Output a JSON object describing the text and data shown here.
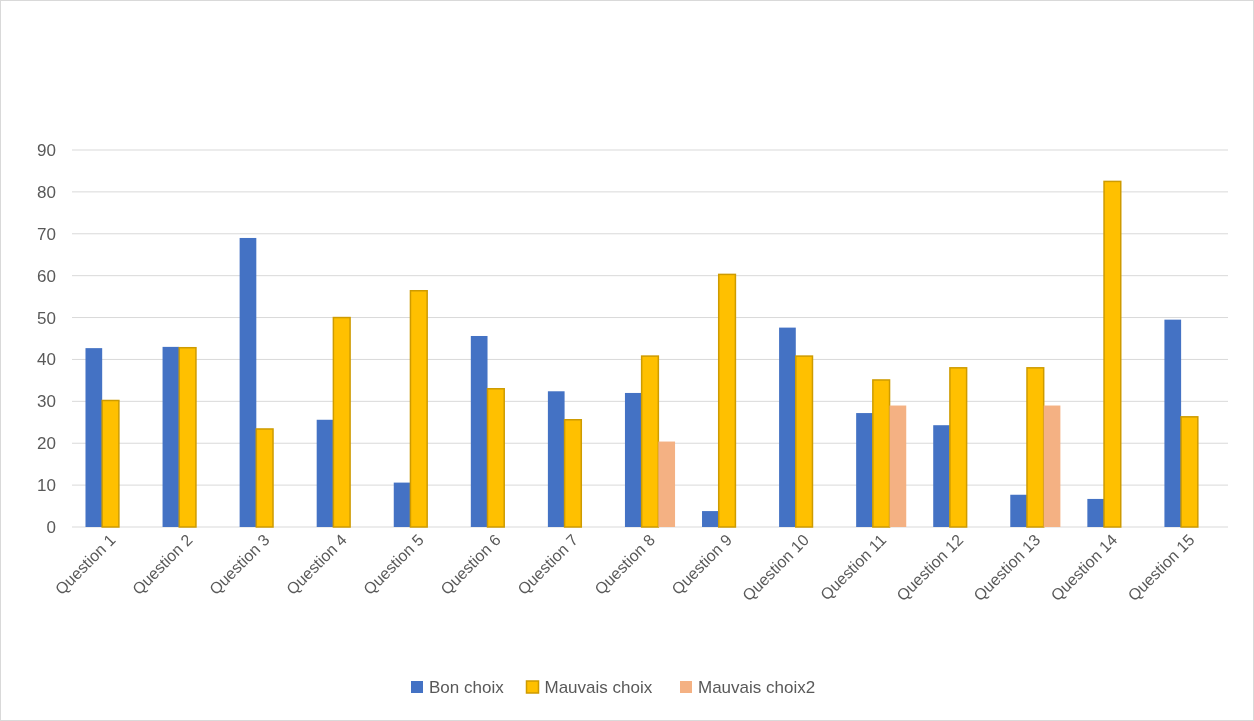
{
  "chart_data": {
    "type": "bar",
    "categories": [
      "Question 1",
      "Question 2",
      "Question 3",
      "Question 4",
      "Question 5",
      "Question 6",
      "Question 7",
      "Question 8",
      "Question 9",
      "Question 10",
      "Question 11",
      "Question 12",
      "Question 13",
      "Question 14",
      "Question 15"
    ],
    "series": [
      {
        "name": "Bon choix",
        "color": "#4472c4",
        "values": [
          42.7,
          43,
          69,
          25.6,
          10.6,
          45.6,
          32.4,
          32,
          3.8,
          47.6,
          27.2,
          24.3,
          7.7,
          6.7,
          49.5
        ]
      },
      {
        "name": "Mauvais choix",
        "color": "#ffc000",
        "values": [
          30.2,
          42.8,
          23.4,
          50,
          56.4,
          33,
          25.6,
          40.8,
          60.3,
          40.8,
          35.1,
          38,
          38,
          82.5,
          26.3
        ]
      },
      {
        "name": "Mauvais choix2",
        "color": "#f4b183",
        "values": [
          null,
          null,
          null,
          null,
          null,
          null,
          null,
          20.4,
          null,
          null,
          29,
          null,
          29,
          null,
          null
        ]
      }
    ],
    "ylim": [
      0,
      90
    ],
    "yticks": [
      0,
      10,
      20,
      30,
      40,
      50,
      60,
      70,
      80,
      90
    ],
    "grid": "y",
    "legend": "bottom"
  }
}
